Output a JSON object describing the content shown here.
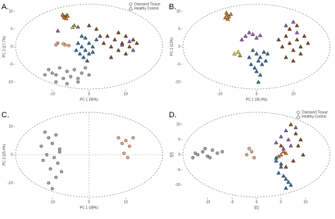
{
  "chart_data": [
    {
      "type": "scatter",
      "panel_label": "A.",
      "xlabel": "PC 1 (35%)",
      "ylabel": "PC 2 (17.7%)",
      "xlim": [
        -20,
        20
      ],
      "ylim": [
        -12,
        12
      ],
      "xticks": [
        -10,
        0,
        10
      ],
      "yticks": [
        -10,
        -5,
        0,
        5,
        10
      ],
      "legend": "upper right",
      "zero_lines": false,
      "series": [
        {
          "name": "Diseased Tissue",
          "marker": "circle",
          "color": "#a6a6a6",
          "x": [
            -11,
            -10,
            -9,
            -8,
            -7,
            -6,
            -5,
            -4,
            -3,
            -2,
            -1,
            0,
            -12,
            -9,
            -6,
            -3
          ],
          "values": [
            -6.5,
            -7.5,
            -8,
            -6,
            -9,
            -7,
            -8.5,
            -6.5,
            -9,
            -7.5,
            -6,
            -8,
            -8,
            -10,
            -10.5,
            -10
          ]
        },
        {
          "name": "Healthy Control",
          "marker": "triangle",
          "color": "#2f6ea5",
          "x": [
            -3,
            -2,
            -1,
            0,
            -2.5,
            -1.5,
            0,
            1,
            -3.5,
            -1,
            -2,
            2,
            -0.5,
            1
          ],
          "values": [
            1,
            0,
            -1,
            1,
            -2,
            -3,
            -2,
            0,
            -1,
            2.5,
            3,
            2,
            -4,
            -1.5
          ]
        },
        {
          "marker": "circle",
          "color": "#f4a582",
          "x": [
            -6.5,
            -7,
            -5.5
          ],
          "values": [
            0.5,
            0.8,
            0.3
          ]
        },
        {
          "marker": "circle",
          "color": "#e8a0a0",
          "x": [
            -8.5,
            -9
          ],
          "values": [
            1,
            0.5
          ]
        },
        {
          "marker": "triangle",
          "color": "#e07b1a",
          "x": [
            -6.5,
            -6,
            -7,
            -6.8,
            -6.2,
            -5.8,
            -7.2
          ],
          "values": [
            8.5,
            9,
            8.8,
            8.2,
            8,
            8.7,
            9.1
          ]
        },
        {
          "marker": "triangle",
          "color": "#e8d44d",
          "x": [
            -4.5
          ],
          "values": [
            5.5
          ]
        },
        {
          "marker": "triangle",
          "color": "#7cb342",
          "x": [
            -4
          ],
          "values": [
            6
          ]
        },
        {
          "marker": "triangle",
          "color": "#9b59b6",
          "x": [
            -8.5,
            -3,
            9,
            11,
            12
          ],
          "values": [
            4.5,
            5.6,
            0.5,
            1.5,
            -1
          ]
        },
        {
          "marker": "triangle",
          "color": "#8b4513",
          "x": [
            4,
            5,
            6,
            7,
            8,
            9,
            10,
            11,
            12,
            6,
            3,
            8,
            13,
            10,
            2,
            0
          ],
          "values": [
            1,
            3,
            0,
            2,
            -1,
            1,
            3,
            0,
            2,
            -3,
            3,
            4,
            1,
            -2,
            5,
            6
          ]
        }
      ]
    },
    {
      "type": "scatter",
      "panel_label": "B.",
      "xlabel": "PC 1 (35.9%)",
      "ylabel": "PC 2 (13%)",
      "xlim": [
        -20,
        20
      ],
      "ylim": [
        -12,
        12
      ],
      "xticks": [
        -10,
        0,
        10
      ],
      "yticks": [
        -10,
        -5,
        0,
        5,
        10
      ],
      "zero_lines": false,
      "series": [
        {
          "marker": "triangle",
          "color": "#e07b1a",
          "x": [
            -8,
            -7.5,
            -8.5,
            -7,
            -8.2,
            -7.8
          ],
          "values": [
            9,
            8.5,
            8.2,
            9.2,
            9.6,
            7.8
          ]
        },
        {
          "marker": "triangle",
          "color": "#9b59b6",
          "x": [
            -3,
            -2,
            -1,
            0,
            1,
            -4,
            8,
            9,
            10,
            11
          ],
          "values": [
            3,
            4,
            3.5,
            2.5,
            3.2,
            2,
            6,
            5,
            7,
            4
          ]
        },
        {
          "marker": "triangle",
          "color": "#e8d44d",
          "x": [
            -6,
            -5
          ],
          "values": [
            -2,
            -1.5
          ]
        },
        {
          "marker": "triangle",
          "color": "#7cb342",
          "x": [
            -4.5
          ],
          "values": [
            -2.5
          ]
        },
        {
          "marker": "triangle",
          "color": "#2f6ea5",
          "x": [
            -1,
            0,
            1,
            2,
            -2,
            0.5,
            1.5,
            -0.5,
            2.5,
            0,
            1,
            -1.5,
            3,
            0.5
          ],
          "values": [
            -1,
            -2,
            -3,
            -1.5,
            -3,
            -4,
            -5,
            -6,
            -4,
            -7,
            -8,
            -5,
            -2,
            -10
          ]
        },
        {
          "marker": "triangle",
          "color": "#8b4513",
          "x": [
            6,
            7,
            8,
            9,
            10,
            11,
            12,
            13,
            8,
            10,
            12,
            14,
            9,
            11
          ],
          "values": [
            2,
            0,
            3,
            1,
            -1,
            2,
            0,
            3,
            -3,
            -4,
            -2,
            1,
            5,
            6
          ]
        }
      ]
    },
    {
      "type": "scatter",
      "panel_label": "C.",
      "xlabel": "PC 1 (38%)",
      "ylabel": "PC 2 (25.4%)",
      "xlim": [
        -20,
        20
      ],
      "ylim": [
        -15,
        15
      ],
      "xticks": [
        -10,
        0,
        10
      ],
      "yticks": [
        -10,
        0,
        10
      ],
      "zero_lines": true,
      "series": [
        {
          "marker": "circle",
          "color": "#a6a6a6",
          "x": [
            -12,
            -11,
            -10,
            -9,
            -8,
            -13,
            -11.5,
            -9.5,
            -8.5,
            -10.5,
            -12.5,
            -9,
            -7.5,
            -11,
            -10,
            -8
          ],
          "values": [
            8,
            6,
            4,
            7,
            2,
            3,
            0,
            -1,
            -3,
            -5,
            -2,
            -8,
            -6,
            -10,
            -12,
            1
          ]
        },
        {
          "marker": "circle",
          "color": "#f4a582",
          "x": [
            8,
            9,
            10,
            11,
            12,
            9.5,
            10.5
          ],
          "values": [
            6,
            4,
            5,
            3,
            6,
            0.5,
            -1
          ]
        }
      ]
    },
    {
      "type": "scatter",
      "panel_label": "D.",
      "xlabel": "t[1]",
      "ylabel": "t[2]",
      "xlim": [
        -15,
        15
      ],
      "ylim": [
        -14,
        14
      ],
      "xticks": [
        -10,
        -5,
        0,
        5,
        10
      ],
      "yticks": [
        -10,
        -5,
        0,
        5,
        10
      ],
      "legend": "upper right",
      "zero_lines": false,
      "series": [
        {
          "name": "Diseased Tissue",
          "marker": "circle",
          "color": "#a6a6a6",
          "x": [
            -13,
            -12,
            -11,
            -10,
            -9,
            -8,
            -12.5,
            -10.5,
            -9.5,
            -7
          ],
          "values": [
            -1,
            0,
            1,
            -0.5,
            1.5,
            0.5,
            0.5,
            2,
            -1,
            1
          ]
        },
        {
          "name": "Healthy Control",
          "marker": "triangle",
          "color": "#2f6ea5",
          "x": [
            4,
            5,
            4.5,
            5.5,
            6,
            6.5,
            7,
            5,
            4,
            6
          ],
          "values": [
            -2,
            -4,
            -6,
            -7,
            -8,
            -9,
            -10,
            -3,
            -1,
            -11
          ]
        },
        {
          "marker": "circle",
          "color": "#f4a582",
          "x": [
            -2,
            -1,
            -0.5,
            -1.5
          ],
          "values": [
            0,
            1,
            -1,
            2
          ]
        },
        {
          "marker": "triangle",
          "color": "#e07b1a",
          "x": [
            5,
            5.5,
            4.5,
            6
          ],
          "values": [
            0,
            1,
            -0.5,
            0.5
          ]
        },
        {
          "marker": "triangle",
          "color": "#9b59b6",
          "x": [
            4,
            5,
            6,
            7,
            8,
            5.5,
            6.5
          ],
          "values": [
            4,
            6,
            8,
            3,
            9,
            2,
            5
          ]
        },
        {
          "marker": "triangle",
          "color": "#8b4513",
          "x": [
            7,
            8,
            9,
            8.5,
            7.5,
            9.5,
            6,
            5
          ],
          "values": [
            10,
            7,
            5,
            3,
            -2,
            0,
            -4,
            3
          ]
        }
      ]
    }
  ]
}
